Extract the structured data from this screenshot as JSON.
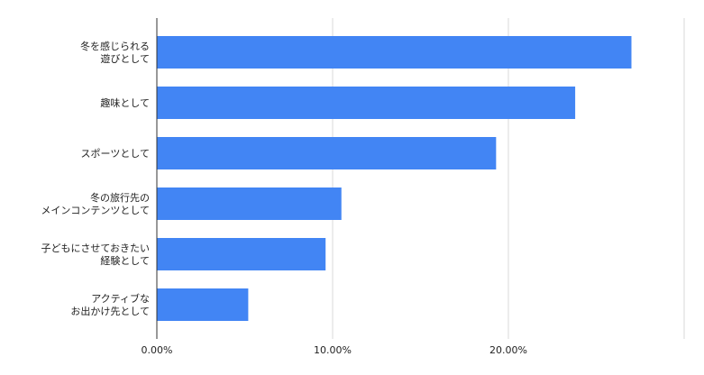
{
  "chart_data": {
    "type": "bar",
    "orientation": "horizontal",
    "categories": [
      [
        "冬を感じられる",
        "遊びとして"
      ],
      [
        "趣味として"
      ],
      [
        "スポーツとして"
      ],
      [
        "冬の旅行先の",
        "メインコンテンツとして"
      ],
      [
        "子どもにさせておきたい",
        "経験として"
      ],
      [
        "アクティブな",
        "お出かけ先として"
      ]
    ],
    "series": [
      {
        "values": [
          27.0,
          23.8,
          19.3,
          10.5,
          9.6,
          5.2
        ],
        "color": "#4285f4"
      }
    ],
    "x_ticks": [
      "0.00%",
      "10.00%",
      "20.00%"
    ],
    "xlim": [
      0,
      30
    ],
    "grid": true,
    "legend": "none"
  }
}
